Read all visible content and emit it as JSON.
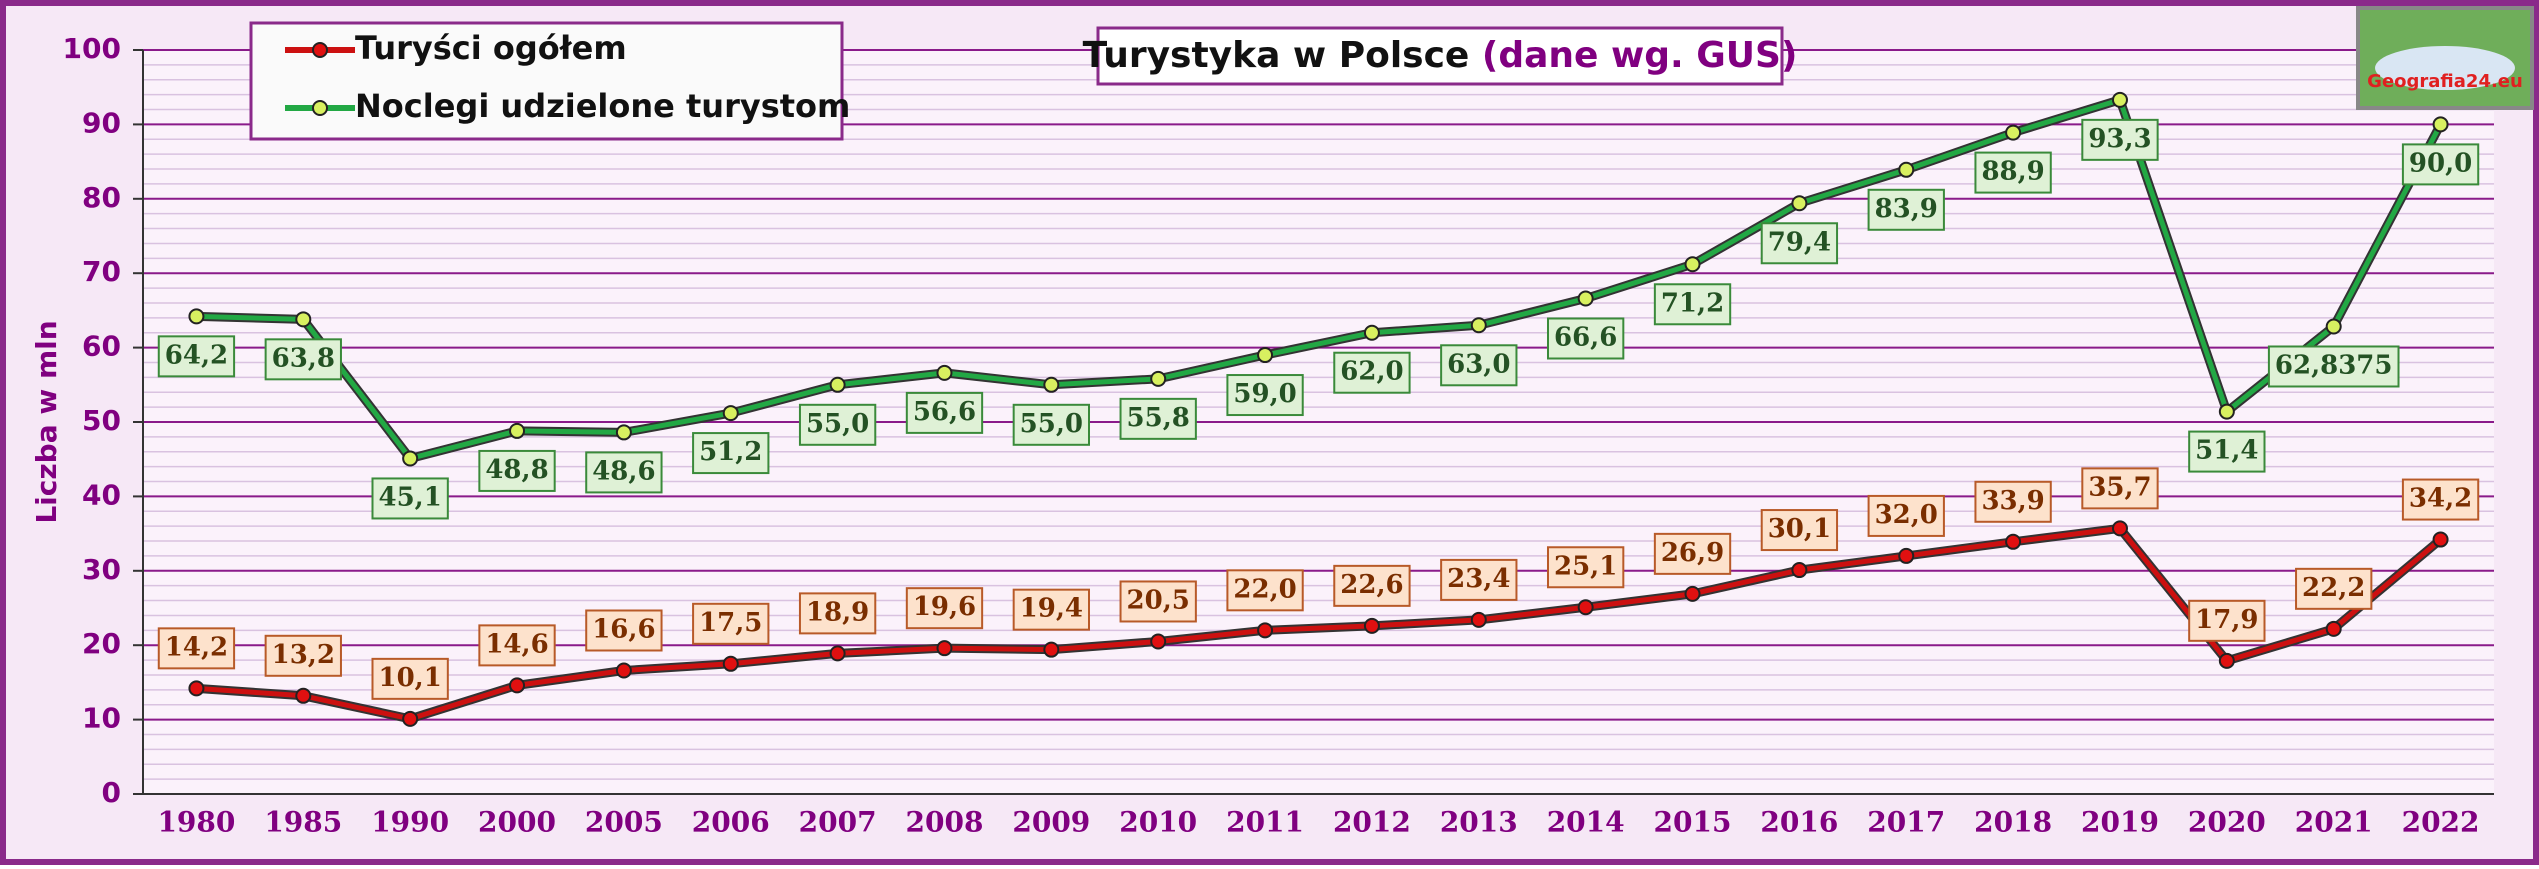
{
  "chart_data": {
    "type": "line",
    "title": "Turystyka w Polsce",
    "subtitle": "(dane wg. GUS)",
    "logo": "Geografia24.eu",
    "y_label": "Liczba w mln",
    "categories": [
      "1980",
      "1985",
      "1990",
      "2000",
      "2005",
      "2006",
      "2007",
      "2008",
      "2009",
      "2010",
      "2011",
      "2012",
      "2013",
      "2014",
      "2015",
      "2016",
      "2017",
      "2018",
      "2019",
      "2020",
      "2021",
      "2022"
    ],
    "series": [
      {
        "name": "Turyści ogółem",
        "color": "#cc1010",
        "values": [
          14.2,
          13.2,
          10.1,
          14.6,
          16.6,
          17.5,
          18.9,
          19.6,
          19.4,
          20.5,
          22.0,
          22.6,
          23.4,
          25.1,
          26.9,
          30.1,
          32.0,
          33.9,
          35.7,
          17.9,
          22.2,
          34.2
        ],
        "value_labels": [
          "14,2",
          "13,2",
          "10,1",
          "14,6",
          "16,6",
          "17,5",
          "18,9",
          "19,6",
          "19,4",
          "20,5",
          "22,0",
          "22,6",
          "23,4",
          "25,1",
          "26,9",
          "30,1",
          "32,0",
          "33,9",
          "35,7",
          "17,9",
          "22,2",
          "34,2"
        ]
      },
      {
        "name": "Noclegi udzielone turystom",
        "color": "#22a844",
        "values": [
          64.2,
          63.8,
          45.1,
          48.8,
          48.6,
          51.2,
          55.0,
          56.6,
          55.0,
          55.8,
          59.0,
          62.0,
          63.0,
          66.6,
          71.2,
          79.4,
          83.9,
          88.9,
          93.3,
          51.4,
          62.8375,
          90.0
        ],
        "value_labels": [
          "64,2",
          "63,8",
          "45,1",
          "48,8",
          "48,6",
          "51,2",
          "55,0",
          "56,6",
          "55,0",
          "55,8",
          "59,0",
          "62,0",
          "63,0",
          "66,6",
          "71,2",
          "79,4",
          "83,9",
          "88,9",
          "93,3",
          "51,4",
          "62,8375",
          "90,0"
        ]
      }
    ],
    "ylim": [
      0,
      100
    ],
    "yticks": [
      0,
      10,
      20,
      30,
      40,
      50,
      60,
      70,
      80,
      90,
      100
    ],
    "grid": true,
    "legend": "top-left"
  }
}
